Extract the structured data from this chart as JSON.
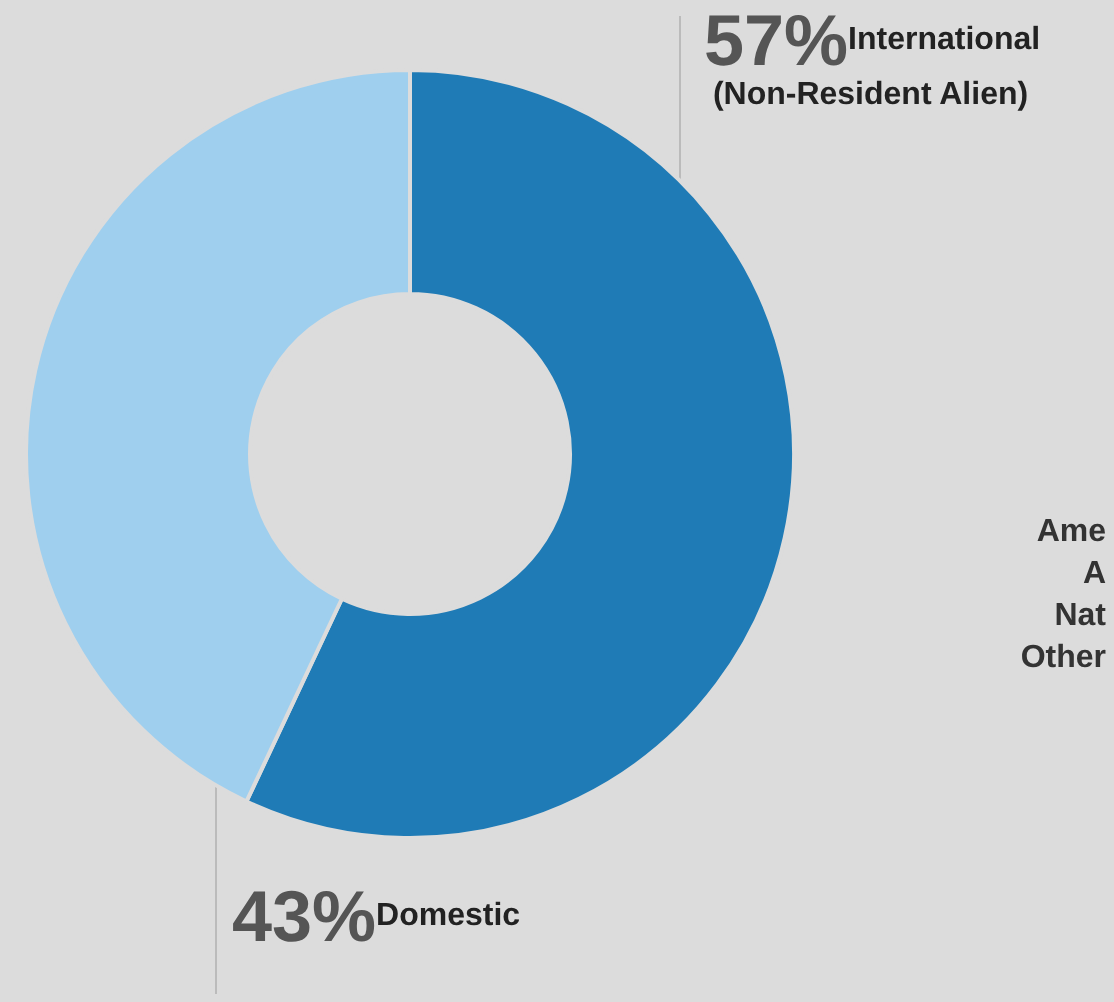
{
  "chart_data": {
    "type": "donut",
    "categories": [
      "International (Non-Resident Alien)",
      "Domestic"
    ],
    "values": [
      57,
      43
    ],
    "colors": [
      "#1f7bb6",
      "#9fcfee"
    ],
    "value_labels": [
      "57%",
      "43%"
    ],
    "annotations": [
      "Ame",
      "A",
      "Nat",
      "Other"
    ],
    "legend": false
  }
}
